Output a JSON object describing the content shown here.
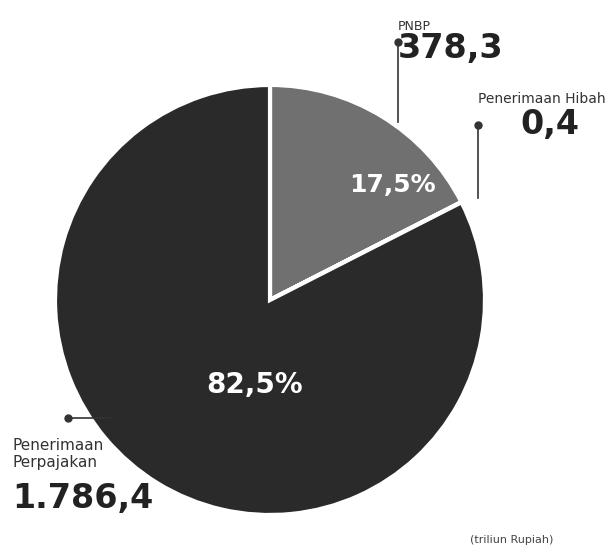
{
  "chart_data": {
    "type": "pie",
    "categories": [
      "PNBP",
      "Penerimaan Hibah",
      "Penerimaan Perpajakan"
    ],
    "values": [
      378.3,
      0.4,
      1786.4
    ],
    "value_labels": [
      "378,3",
      "0,4",
      "1.786,4"
    ],
    "percentages": [
      17.5,
      null,
      82.5
    ],
    "percentage_labels": [
      "17,5%",
      null,
      "82,5%"
    ],
    "unit": "(triliun Rupiah)",
    "colors": [
      "#707070",
      "#c8c8c8",
      "#2a2a2a"
    ],
    "data_labels": true
  }
}
